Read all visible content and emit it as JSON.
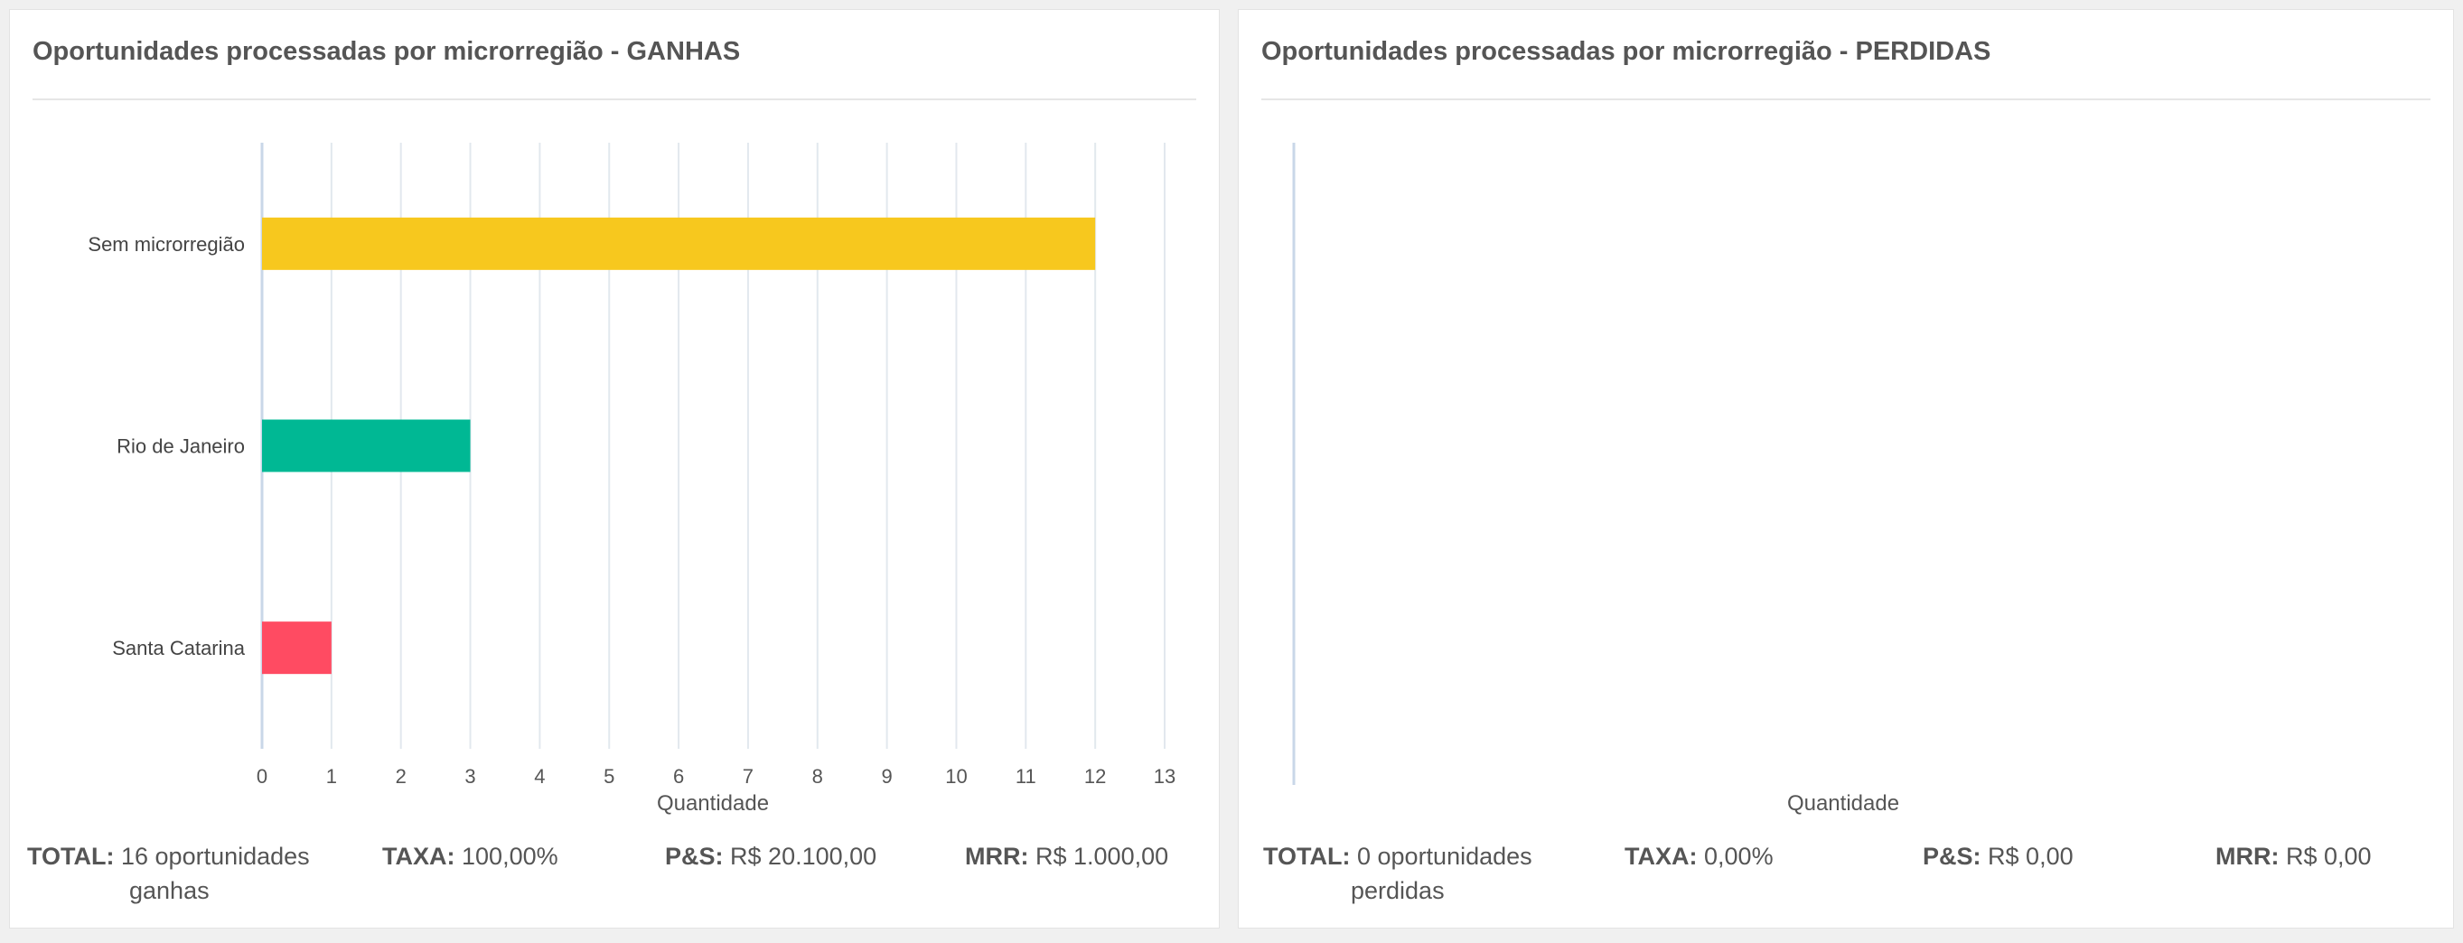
{
  "chart_data": [
    {
      "type": "bar",
      "orientation": "horizontal",
      "title": "Oportunidades processadas por microrregião - GANHAS",
      "xlabel": "Quantidade",
      "ylabel": "",
      "categories": [
        "Sem microrregião",
        "Rio de Janeiro",
        "Santa Catarina"
      ],
      "values": [
        12,
        3,
        1
      ],
      "colors": [
        "#f7c81e",
        "#00b894",
        "#ff4b62"
      ],
      "xlim": [
        0,
        13
      ],
      "ticks": [
        "0",
        "1",
        "2",
        "3",
        "4",
        "5",
        "6",
        "7",
        "8",
        "9",
        "10",
        "11",
        "12",
        "13"
      ],
      "grid": true
    },
    {
      "type": "bar",
      "orientation": "horizontal",
      "title": "Oportunidades processadas por microrregião - PERDIDAS",
      "xlabel": "Quantidade",
      "ylabel": "",
      "categories": [],
      "values": [],
      "grid": false
    }
  ],
  "left_footer": {
    "total_label": "TOTAL:",
    "total_value_line1": "16 oportunidades",
    "total_value_line2": "ganhas",
    "taxa_label": "TAXA:",
    "taxa_value": "100,00%",
    "ps_label": "P&S:",
    "ps_value": "R$ 20.100,00",
    "mrr_label": "MRR:",
    "mrr_value": "R$ 1.000,00"
  },
  "right_footer": {
    "total_label": "TOTAL:",
    "total_value_line1": "0 oportunidades",
    "total_value_line2": "perdidas",
    "taxa_label": "TAXA:",
    "taxa_value": "0,00%",
    "ps_label": "P&S:",
    "ps_value": "R$ 0,00",
    "mrr_label": "MRR:",
    "mrr_value": "R$ 0,00"
  }
}
